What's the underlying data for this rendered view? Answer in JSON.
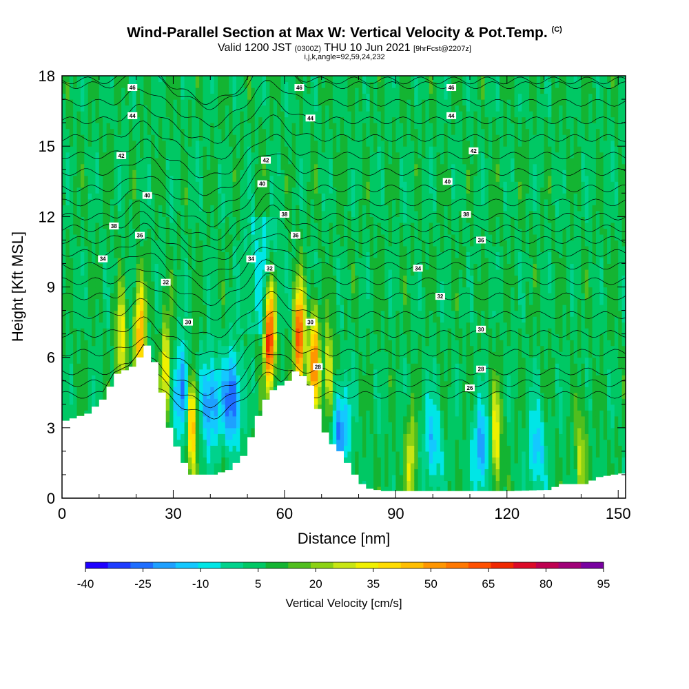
{
  "title": {
    "main": "Wind-Parallel Section at Max W: Vertical Velocity & Pot.Temp.",
    "unit_tag": "(C)",
    "valid": "Valid 1200 JST",
    "valid_z": "(0300Z)",
    "valid_date": "THU 10 Jun 2021",
    "fcst": "[9hrFcst@2207z]",
    "indices": "i,j,k,angle=92,59,24,232"
  },
  "chart_data": {
    "type": "heatmap",
    "xlabel": "Distance [nm]",
    "ylabel": "Height [Kft MSL]",
    "xlim": [
      0,
      152
    ],
    "ylim": [
      0,
      18
    ],
    "x_ticks": [
      0,
      30,
      60,
      90,
      120,
      150
    ],
    "y_ticks": [
      0,
      3,
      6,
      9,
      12,
      15,
      18
    ],
    "colorbar": {
      "title": "Vertical Velocity [cm/s]",
      "tick_labels": [
        "-40",
        "-25",
        "-10",
        "5",
        "20",
        "35",
        "50",
        "65",
        "80",
        "95"
      ],
      "colors": [
        "#1e00ff",
        "#1e3cff",
        "#1e6eff",
        "#1ea0ff",
        "#14c8ff",
        "#00e6e6",
        "#00d28c",
        "#00c864",
        "#14b432",
        "#50be1e",
        "#8cd214",
        "#c8e614",
        "#f0f000",
        "#ffdc00",
        "#ffbe00",
        "#ff9600",
        "#ff7800",
        "#ff5000",
        "#f02800",
        "#dc0a28",
        "#be0050",
        "#a00078",
        "#7800a0"
      ]
    },
    "terrain_kft": [
      [
        0,
        3.3
      ],
      [
        6,
        3.6
      ],
      [
        10,
        4.2
      ],
      [
        14,
        5.3
      ],
      [
        18,
        5.6
      ],
      [
        20,
        6.0
      ],
      [
        22,
        6.5
      ],
      [
        24,
        5.8
      ],
      [
        26,
        4.5
      ],
      [
        28,
        3.0
      ],
      [
        30,
        2.2
      ],
      [
        32,
        1.5
      ],
      [
        34,
        1.0
      ],
      [
        40,
        1.0
      ],
      [
        44,
        1.2
      ],
      [
        48,
        1.8
      ],
      [
        50,
        2.6
      ],
      [
        52,
        3.5
      ],
      [
        54,
        4.2
      ],
      [
        56,
        4.6
      ],
      [
        58,
        4.8
      ],
      [
        60,
        5.0
      ],
      [
        62,
        5.4
      ],
      [
        64,
        5.2
      ],
      [
        66,
        4.8
      ],
      [
        68,
        3.8
      ],
      [
        70,
        2.8
      ],
      [
        72,
        2.3
      ],
      [
        74,
        2.0
      ],
      [
        76,
        1.5
      ],
      [
        78,
        1.0
      ],
      [
        80,
        0.6
      ],
      [
        82,
        0.4
      ],
      [
        86,
        0.3
      ],
      [
        120,
        0.3
      ],
      [
        130,
        0.35
      ],
      [
        134,
        0.6
      ],
      [
        140,
        0.6
      ],
      [
        144,
        0.9
      ],
      [
        152,
        1.1
      ]
    ],
    "updrafts": [
      {
        "x": 16,
        "z": 6.5,
        "w": 30
      },
      {
        "x": 21,
        "z": 7.0,
        "w": 45
      },
      {
        "x": 28,
        "z": 5.5,
        "w": 30
      },
      {
        "x": 35,
        "z": 3.5,
        "w": 55
      },
      {
        "x": 56,
        "z": 7.0,
        "w": 70
      },
      {
        "x": 64,
        "z": 6.8,
        "w": 60
      },
      {
        "x": 68,
        "z": 5.8,
        "w": 50
      },
      {
        "x": 72,
        "z": 5.0,
        "w": 30
      },
      {
        "x": 94,
        "z": 1.5,
        "w": 25
      },
      {
        "x": 117,
        "z": 2.5,
        "w": 30
      },
      {
        "x": 140,
        "z": 1.8,
        "w": 20
      }
    ],
    "downdrafts": [
      {
        "x": 33,
        "z": 4.5,
        "w": -35
      },
      {
        "x": 40,
        "z": 4.0,
        "w": -30
      },
      {
        "x": 46,
        "z": 4.2,
        "w": -35
      },
      {
        "x": 75,
        "z": 3.0,
        "w": -30
      },
      {
        "x": 100,
        "z": 2.3,
        "w": -20
      },
      {
        "x": 113,
        "z": 2.0,
        "w": -25
      },
      {
        "x": 128,
        "z": 2.0,
        "w": -20
      }
    ],
    "theta_contour_labels": [
      {
        "value": "46",
        "x": 19,
        "z": 17.5
      },
      {
        "value": "46",
        "x": 64,
        "z": 17.5
      },
      {
        "value": "46",
        "x": 105,
        "z": 17.5
      },
      {
        "value": "44",
        "x": 19,
        "z": 16.3
      },
      {
        "value": "44",
        "x": 67,
        "z": 16.2
      },
      {
        "value": "44",
        "x": 105,
        "z": 16.3
      },
      {
        "value": "42",
        "x": 16,
        "z": 14.6
      },
      {
        "value": "42",
        "x": 55,
        "z": 14.4
      },
      {
        "value": "42",
        "x": 111,
        "z": 14.8
      },
      {
        "value": "40",
        "x": 23,
        "z": 12.9
      },
      {
        "value": "40",
        "x": 54,
        "z": 13.4
      },
      {
        "value": "40",
        "x": 104,
        "z": 13.5
      },
      {
        "value": "38",
        "x": 14,
        "z": 11.6
      },
      {
        "value": "38",
        "x": 60,
        "z": 12.1
      },
      {
        "value": "38",
        "x": 109,
        "z": 12.1
      },
      {
        "value": "36",
        "x": 21,
        "z": 11.2
      },
      {
        "value": "36",
        "x": 63,
        "z": 11.2
      },
      {
        "value": "36",
        "x": 113,
        "z": 11.0
      },
      {
        "value": "34",
        "x": 11,
        "z": 10.2
      },
      {
        "value": "34",
        "x": 51,
        "z": 10.2
      },
      {
        "value": "34",
        "x": 96,
        "z": 9.8
      },
      {
        "value": "32",
        "x": 28,
        "z": 9.2
      },
      {
        "value": "32",
        "x": 56,
        "z": 9.8
      },
      {
        "value": "32",
        "x": 102,
        "z": 8.6
      },
      {
        "value": "30",
        "x": 34,
        "z": 7.5
      },
      {
        "value": "30",
        "x": 67,
        "z": 7.5
      },
      {
        "value": "30",
        "x": 113,
        "z": 7.2
      },
      {
        "value": "28",
        "x": 69,
        "z": 5.6
      },
      {
        "value": "28",
        "x": 113,
        "z": 5.5
      },
      {
        "value": "26",
        "x": 110,
        "z": 4.7
      }
    ]
  }
}
